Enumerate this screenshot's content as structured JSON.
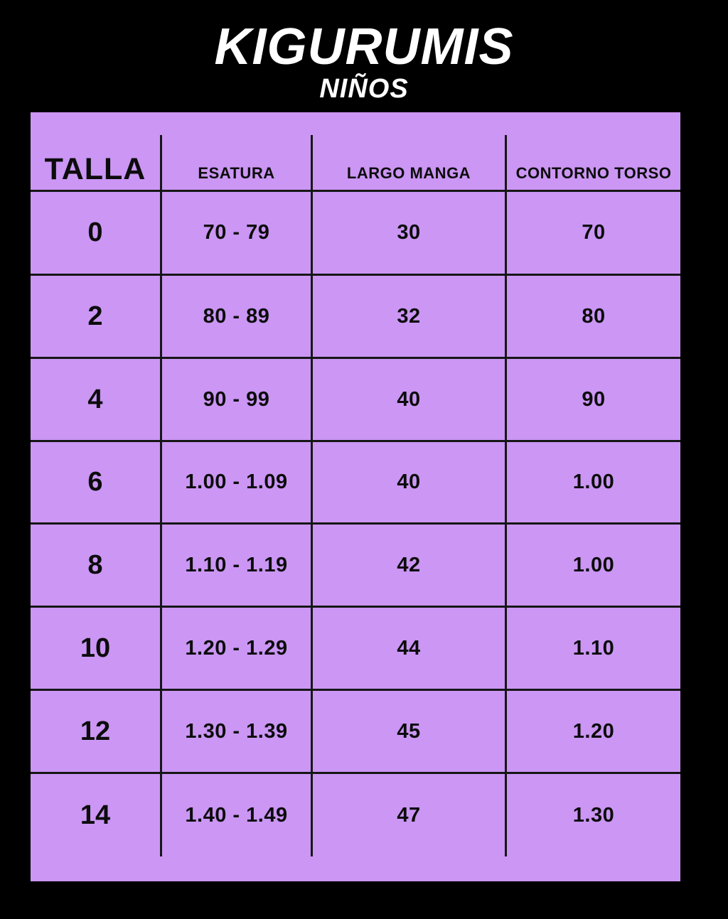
{
  "title": "KIGURUMIS",
  "subtitle": "NIÑOS",
  "colors": {
    "bg": "#000000",
    "panel": "#cb96f4",
    "ink": "#0c0c0c",
    "line": "#161616",
    "title": "#ffffff"
  },
  "chart_data": {
    "type": "table",
    "title": "KIGURUMIS NIÑOS",
    "columns": [
      "TALLA",
      "ESATURA",
      "LARGO MANGA",
      "CONTORNO TORSO"
    ],
    "rows": [
      [
        "0",
        "70 - 79",
        "30",
        "70"
      ],
      [
        "2",
        "80 - 89",
        "32",
        "80"
      ],
      [
        "4",
        "90 - 99",
        "40",
        "90"
      ],
      [
        "6",
        "1.00 - 1.09",
        "40",
        "1.00"
      ],
      [
        "8",
        "1.10 - 1.19",
        "42",
        "1.00"
      ],
      [
        "10",
        "1.20 - 1.29",
        "44",
        "1.10"
      ],
      [
        "12",
        "1.30 - 1.39",
        "45",
        "1.20"
      ],
      [
        "14",
        "1.40 - 1.49",
        "47",
        "1.30"
      ]
    ]
  }
}
